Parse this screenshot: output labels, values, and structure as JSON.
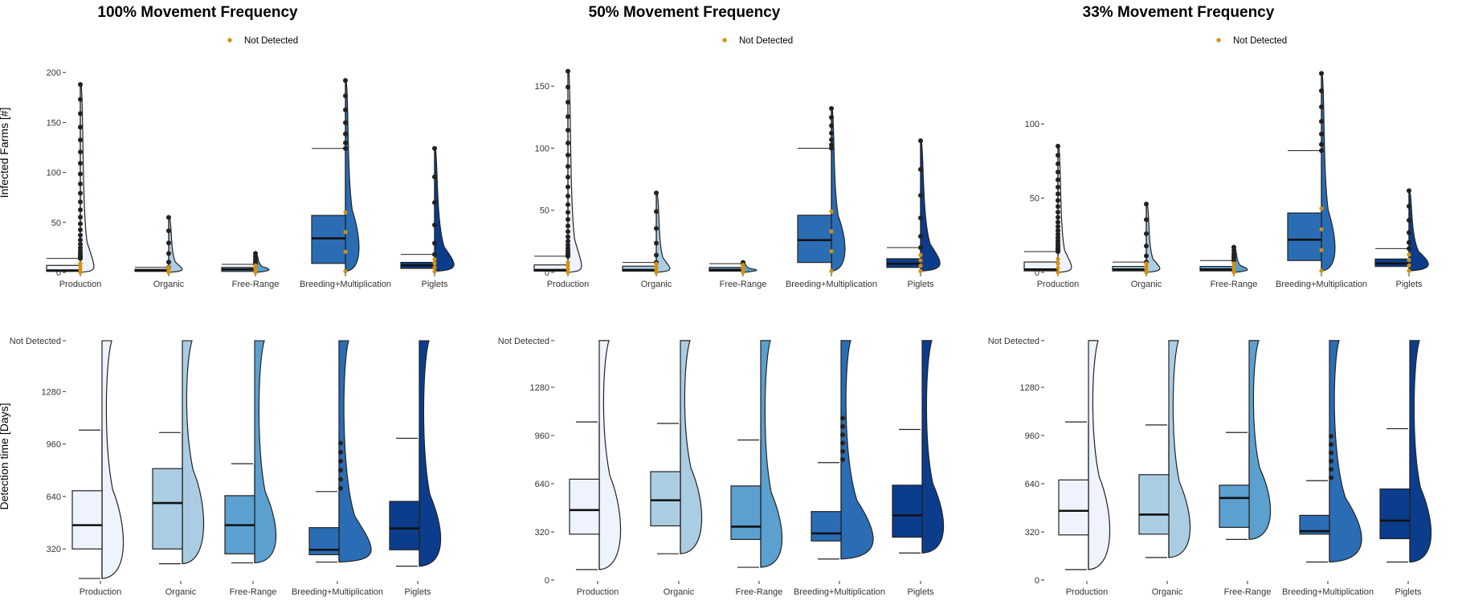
{
  "colors": {
    "Production": "#eef3fd",
    "Organic": "#abcde3",
    "Free-Range": "#5ca0d0",
    "Breeding+Multiplication": "#2b6db5",
    "Piglets": "#0c3d8c",
    "outline": "#222222",
    "outlier": "#222222",
    "not_detected": "#d4900f"
  },
  "ylabels": {
    "top": "Infected Farms [#]",
    "bottom": "Detection time [Days]"
  },
  "legend": {
    "label": "Not Detected"
  },
  "chart_data": [
    {
      "type": "raincloud",
      "title": "100% Movement Frequency",
      "ylabel": "Infected Farms [#]",
      "ylim": [
        0,
        205
      ],
      "yticks": [
        "0",
        "50",
        "100",
        "150",
        "200"
      ],
      "ytick_values": [
        0,
        50,
        100,
        150,
        200
      ],
      "categories": [
        "Production",
        "Organic",
        "Free-Range",
        "Breeding+Multiplication",
        "Piglets"
      ],
      "boxes": [
        {
          "q1": 1,
          "median": 2,
          "q3": 7,
          "whisker_low": 0,
          "whisker_high": 14,
          "max": 188
        },
        {
          "q1": 1,
          "median": 2,
          "q3": 3,
          "whisker_low": 0,
          "whisker_high": 5,
          "max": 55
        },
        {
          "q1": 1,
          "median": 3,
          "q3": 5,
          "whisker_low": 0,
          "whisker_high": 8,
          "max": 19
        },
        {
          "q1": 9,
          "median": 34,
          "q3": 57,
          "whisker_low": 1,
          "whisker_high": 124,
          "max": 192
        },
        {
          "q1": 4,
          "median": 7,
          "q3": 10,
          "whisker_low": 1,
          "whisker_high": 18,
          "max": 124
        }
      ]
    },
    {
      "type": "raincloud",
      "title": "50% Movement Frequency",
      "ylabel": "",
      "ylim": [
        0,
        165
      ],
      "yticks": [
        "0",
        "50",
        "100",
        "150"
      ],
      "ytick_values": [
        0,
        50,
        100,
        150
      ],
      "categories": [
        "Production",
        "Organic",
        "Free-Range",
        "Breeding+Multiplication",
        "Piglets"
      ],
      "boxes": [
        {
          "q1": 1,
          "median": 2,
          "q3": 6,
          "whisker_low": 0,
          "whisker_high": 13,
          "max": 162
        },
        {
          "q1": 1,
          "median": 2,
          "q3": 5,
          "whisker_low": 0,
          "whisker_high": 8,
          "max": 64
        },
        {
          "q1": 1,
          "median": 2,
          "q3": 4,
          "whisker_low": 0,
          "whisker_high": 7,
          "max": 8
        },
        {
          "q1": 8,
          "median": 26,
          "q3": 46,
          "whisker_low": 1,
          "whisker_high": 100,
          "max": 132
        },
        {
          "q1": 4,
          "median": 7,
          "q3": 11,
          "whisker_low": 1,
          "whisker_high": 20,
          "max": 106
        }
      ]
    },
    {
      "type": "raincloud",
      "title": "33% Movement Frequency",
      "ylabel": "",
      "ylim": [
        0,
        138
      ],
      "yticks": [
        "0",
        "50",
        "100"
      ],
      "ytick_values": [
        0,
        50,
        100
      ],
      "categories": [
        "Production",
        "Organic",
        "Free-Range",
        "Breeding+Multiplication",
        "Piglets"
      ],
      "boxes": [
        {
          "q1": 1,
          "median": 2,
          "q3": 7,
          "whisker_low": 0,
          "whisker_high": 14,
          "max": 85
        },
        {
          "q1": 1,
          "median": 2,
          "q3": 4,
          "whisker_low": 0,
          "whisker_high": 7,
          "max": 46
        },
        {
          "q1": 1,
          "median": 2,
          "q3": 4,
          "whisker_low": 0,
          "whisker_high": 8,
          "max": 17
        },
        {
          "q1": 8,
          "median": 22,
          "q3": 40,
          "whisker_low": 1,
          "whisker_high": 82,
          "max": 134
        },
        {
          "q1": 4,
          "median": 6,
          "q3": 9,
          "whisker_low": 1,
          "whisker_high": 16,
          "max": 55
        }
      ]
    },
    {
      "type": "raincloud",
      "title": "",
      "ylabel": "Detection time [Days]",
      "ylim": [
        130,
        1600
      ],
      "yticks": [
        "320",
        "640",
        "960",
        "1280",
        "Not Detected"
      ],
      "ytick_values": [
        320,
        640,
        960,
        1280,
        1590
      ],
      "categories": [
        "Production",
        "Organic",
        "Free-Range",
        "Breeding+Multiplication",
        "Piglets"
      ],
      "boxes": [
        {
          "q1": 320,
          "median": 465,
          "q3": 675,
          "whisker_low": 140,
          "whisker_high": 1045,
          "max": 1590
        },
        {
          "q1": 320,
          "median": 600,
          "q3": 810,
          "whisker_low": 230,
          "whisker_high": 1030,
          "max": 1590
        },
        {
          "q1": 290,
          "median": 465,
          "q3": 645,
          "whisker_low": 235,
          "whisker_high": 840,
          "max": 1590
        },
        {
          "q1": 285,
          "median": 315,
          "q3": 450,
          "whisker_low": 240,
          "whisker_high": 670,
          "max": 1590
        },
        {
          "q1": 315,
          "median": 445,
          "q3": 610,
          "whisker_low": 215,
          "whisker_high": 995,
          "max": 1590
        }
      ]
    },
    {
      "type": "raincloud",
      "title": "",
      "ylabel": "",
      "ylim": [
        0,
        1600
      ],
      "yticks": [
        "0",
        "320",
        "640",
        "960",
        "1280",
        "Not Detected"
      ],
      "ytick_values": [
        0,
        320,
        640,
        960,
        1280,
        1590
      ],
      "categories": [
        "Production",
        "Organic",
        "Free-Range",
        "Breeding+Multiplication",
        "Piglets"
      ],
      "boxes": [
        {
          "q1": 305,
          "median": 465,
          "q3": 670,
          "whisker_low": 70,
          "whisker_high": 1050,
          "max": 1590
        },
        {
          "q1": 360,
          "median": 530,
          "q3": 720,
          "whisker_low": 175,
          "whisker_high": 1040,
          "max": 1590
        },
        {
          "q1": 270,
          "median": 355,
          "q3": 625,
          "whisker_low": 85,
          "whisker_high": 930,
          "max": 1590
        },
        {
          "q1": 260,
          "median": 310,
          "q3": 455,
          "whisker_low": 140,
          "whisker_high": 780,
          "max": 1590
        },
        {
          "q1": 285,
          "median": 430,
          "q3": 630,
          "whisker_low": 180,
          "whisker_high": 1000,
          "max": 1590
        }
      ]
    },
    {
      "type": "raincloud",
      "title": "",
      "ylabel": "",
      "ylim": [
        0,
        1600
      ],
      "yticks": [
        "0",
        "320",
        "640",
        "960",
        "1280",
        "Not Detected"
      ],
      "ytick_values": [
        0,
        320,
        640,
        960,
        1280,
        1590
      ],
      "categories": [
        "Production",
        "Organic",
        "Free-Range",
        "Breeding+Multiplication",
        "Piglets"
      ],
      "boxes": [
        {
          "q1": 300,
          "median": 460,
          "q3": 665,
          "whisker_low": 70,
          "whisker_high": 1050,
          "max": 1590
        },
        {
          "q1": 305,
          "median": 435,
          "q3": 700,
          "whisker_low": 150,
          "whisker_high": 1030,
          "max": 1590
        },
        {
          "q1": 350,
          "median": 545,
          "q3": 630,
          "whisker_low": 270,
          "whisker_high": 980,
          "max": 1590
        },
        {
          "q1": 305,
          "median": 325,
          "q3": 430,
          "whisker_low": 120,
          "whisker_high": 660,
          "max": 1590
        },
        {
          "q1": 275,
          "median": 395,
          "q3": 605,
          "whisker_low": 120,
          "whisker_high": 1005,
          "max": 1590
        }
      ]
    }
  ]
}
